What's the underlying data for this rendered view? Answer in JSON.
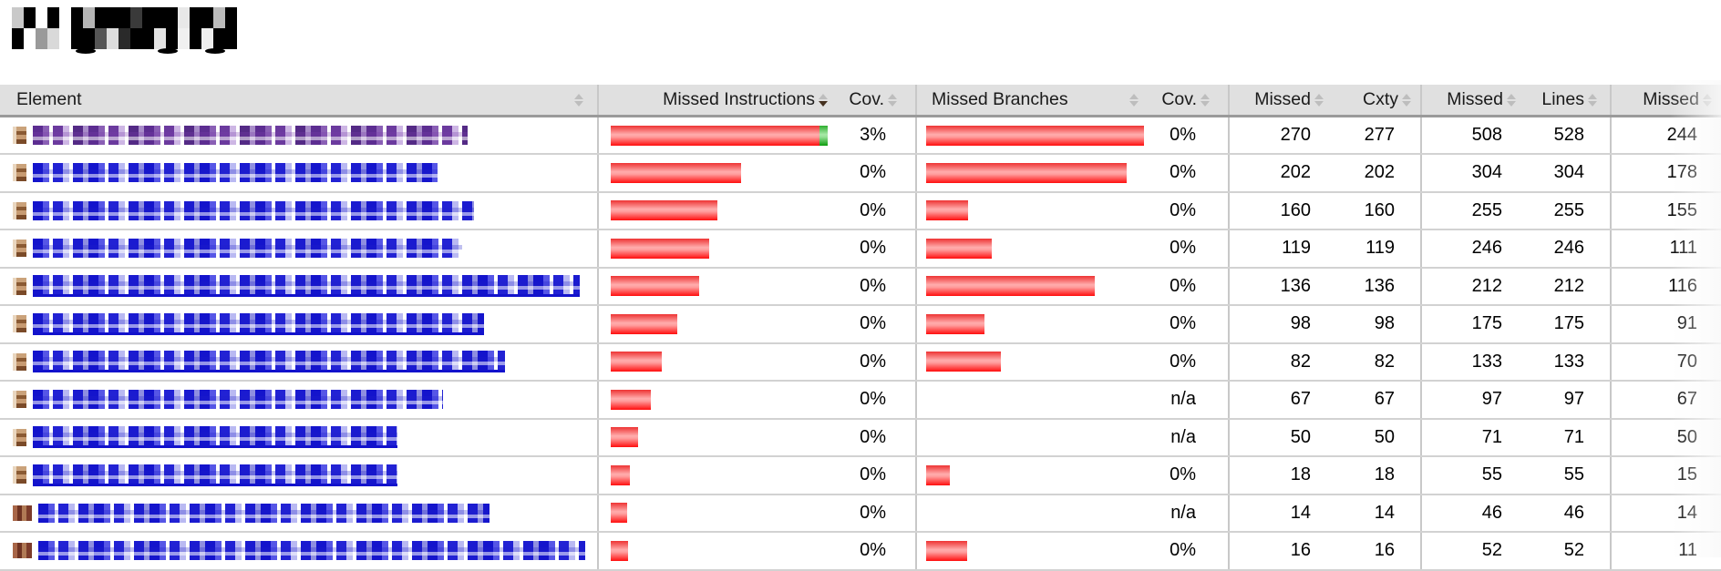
{
  "page": {
    "title_redacted": true,
    "colors": {
      "bar_red": "#ff1f1f",
      "bar_green": "#18a018",
      "link_blue": "#1d1dcf",
      "link_visited_purple": "#6a3d9a",
      "header_bg": "#e0e0e0"
    }
  },
  "table": {
    "headers": {
      "element": "Element",
      "missed_instructions": "Missed Instructions",
      "cov_instructions": "Cov.",
      "missed_branches": "Missed Branches",
      "cov_branches": "Cov.",
      "missed_1": "Missed",
      "cxty": "Cxty",
      "missed_2": "Missed",
      "lines": "Lines",
      "missed_3": "Missed"
    },
    "sort": {
      "column": "missed_instructions",
      "direction": "desc"
    },
    "rows": [
      {
        "element_redacted": true,
        "link_color": "purple",
        "underline": false,
        "icon": "package",
        "redact_w": 477,
        "instr_missed_w": 229,
        "instr_cov_w": 9,
        "branch_missed_w": 240,
        "cov_instructions": "3%",
        "cov_branches": "0%",
        "missed_1": 270,
        "cxty": 277,
        "missed_2": 508,
        "lines": 528,
        "missed_3": 244
      },
      {
        "element_redacted": true,
        "link_color": "blue",
        "underline": false,
        "icon": "package",
        "redact_w": 444,
        "instr_missed_w": 143,
        "instr_cov_w": 0,
        "branch_missed_w": 220,
        "cov_instructions": "0%",
        "cov_branches": "0%",
        "missed_1": 202,
        "cxty": 202,
        "missed_2": 304,
        "lines": 304,
        "missed_3": 178
      },
      {
        "element_redacted": true,
        "link_color": "blue",
        "underline": false,
        "icon": "package",
        "redact_w": 484,
        "instr_missed_w": 117,
        "instr_cov_w": 0,
        "branch_missed_w": 46,
        "cov_instructions": "0%",
        "cov_branches": "0%",
        "missed_1": 160,
        "cxty": 160,
        "missed_2": 255,
        "lines": 255,
        "missed_3": 155
      },
      {
        "element_redacted": true,
        "link_color": "blue",
        "underline": false,
        "icon": "package",
        "redact_w": 471,
        "instr_missed_w": 108,
        "instr_cov_w": 0,
        "branch_missed_w": 72,
        "cov_instructions": "0%",
        "cov_branches": "0%",
        "missed_1": 119,
        "cxty": 119,
        "missed_2": 246,
        "lines": 246,
        "missed_3": 111
      },
      {
        "element_redacted": true,
        "link_color": "blue",
        "underline": true,
        "icon": "package",
        "redact_w": 600,
        "instr_missed_w": 97,
        "instr_cov_w": 0,
        "branch_missed_w": 185,
        "cov_instructions": "0%",
        "cov_branches": "0%",
        "missed_1": 136,
        "cxty": 136,
        "missed_2": 212,
        "lines": 212,
        "missed_3": 116
      },
      {
        "element_redacted": true,
        "link_color": "blue",
        "underline": true,
        "icon": "package",
        "redact_w": 495,
        "instr_missed_w": 73,
        "instr_cov_w": 0,
        "branch_missed_w": 64,
        "cov_instructions": "0%",
        "cov_branches": "0%",
        "missed_1": 98,
        "cxty": 98,
        "missed_2": 175,
        "lines": 175,
        "missed_3": 91
      },
      {
        "element_redacted": true,
        "link_color": "blue",
        "underline": true,
        "icon": "package",
        "redact_w": 518,
        "instr_missed_w": 56,
        "instr_cov_w": 0,
        "branch_missed_w": 82,
        "cov_instructions": "0%",
        "cov_branches": "0%",
        "missed_1": 82,
        "cxty": 82,
        "missed_2": 133,
        "lines": 133,
        "missed_3": 70
      },
      {
        "element_redacted": true,
        "link_color": "blue",
        "underline": false,
        "icon": "package",
        "redact_w": 450,
        "instr_missed_w": 44,
        "instr_cov_w": 0,
        "branch_missed_w": 0,
        "cov_instructions": "0%",
        "cov_branches": "n/a",
        "missed_1": 67,
        "cxty": 67,
        "missed_2": 97,
        "lines": 97,
        "missed_3": 67
      },
      {
        "element_redacted": true,
        "link_color": "blue",
        "underline": true,
        "icon": "package",
        "redact_w": 400,
        "instr_missed_w": 30,
        "instr_cov_w": 0,
        "branch_missed_w": 0,
        "cov_instructions": "0%",
        "cov_branches": "n/a",
        "missed_1": 50,
        "cxty": 50,
        "missed_2": 71,
        "lines": 71,
        "missed_3": 50
      },
      {
        "element_redacted": true,
        "link_color": "blue",
        "underline": true,
        "icon": "package",
        "redact_w": 400,
        "instr_missed_w": 21,
        "instr_cov_w": 0,
        "branch_missed_w": 26,
        "cov_instructions": "0%",
        "cov_branches": "0%",
        "missed_1": 18,
        "cxty": 18,
        "missed_2": 55,
        "lines": 55,
        "missed_3": 15
      },
      {
        "element_redacted": true,
        "link_color": "blue",
        "underline": false,
        "icon": "bundle",
        "redact_w": 495,
        "instr_missed_w": 18,
        "instr_cov_w": 0,
        "branch_missed_w": 0,
        "cov_instructions": "0%",
        "cov_branches": "n/a",
        "missed_1": 14,
        "cxty": 14,
        "missed_2": 46,
        "lines": 46,
        "missed_3": 14
      },
      {
        "element_redacted": true,
        "link_color": "blue",
        "underline": false,
        "icon": "bundle",
        "redact_w": 600,
        "instr_missed_w": 19,
        "instr_cov_w": 0,
        "branch_missed_w": 45,
        "cov_instructions": "0%",
        "cov_branches": "0%",
        "missed_1": 16,
        "cxty": 16,
        "missed_2": 52,
        "lines": 52,
        "missed_3": 11
      }
    ]
  }
}
